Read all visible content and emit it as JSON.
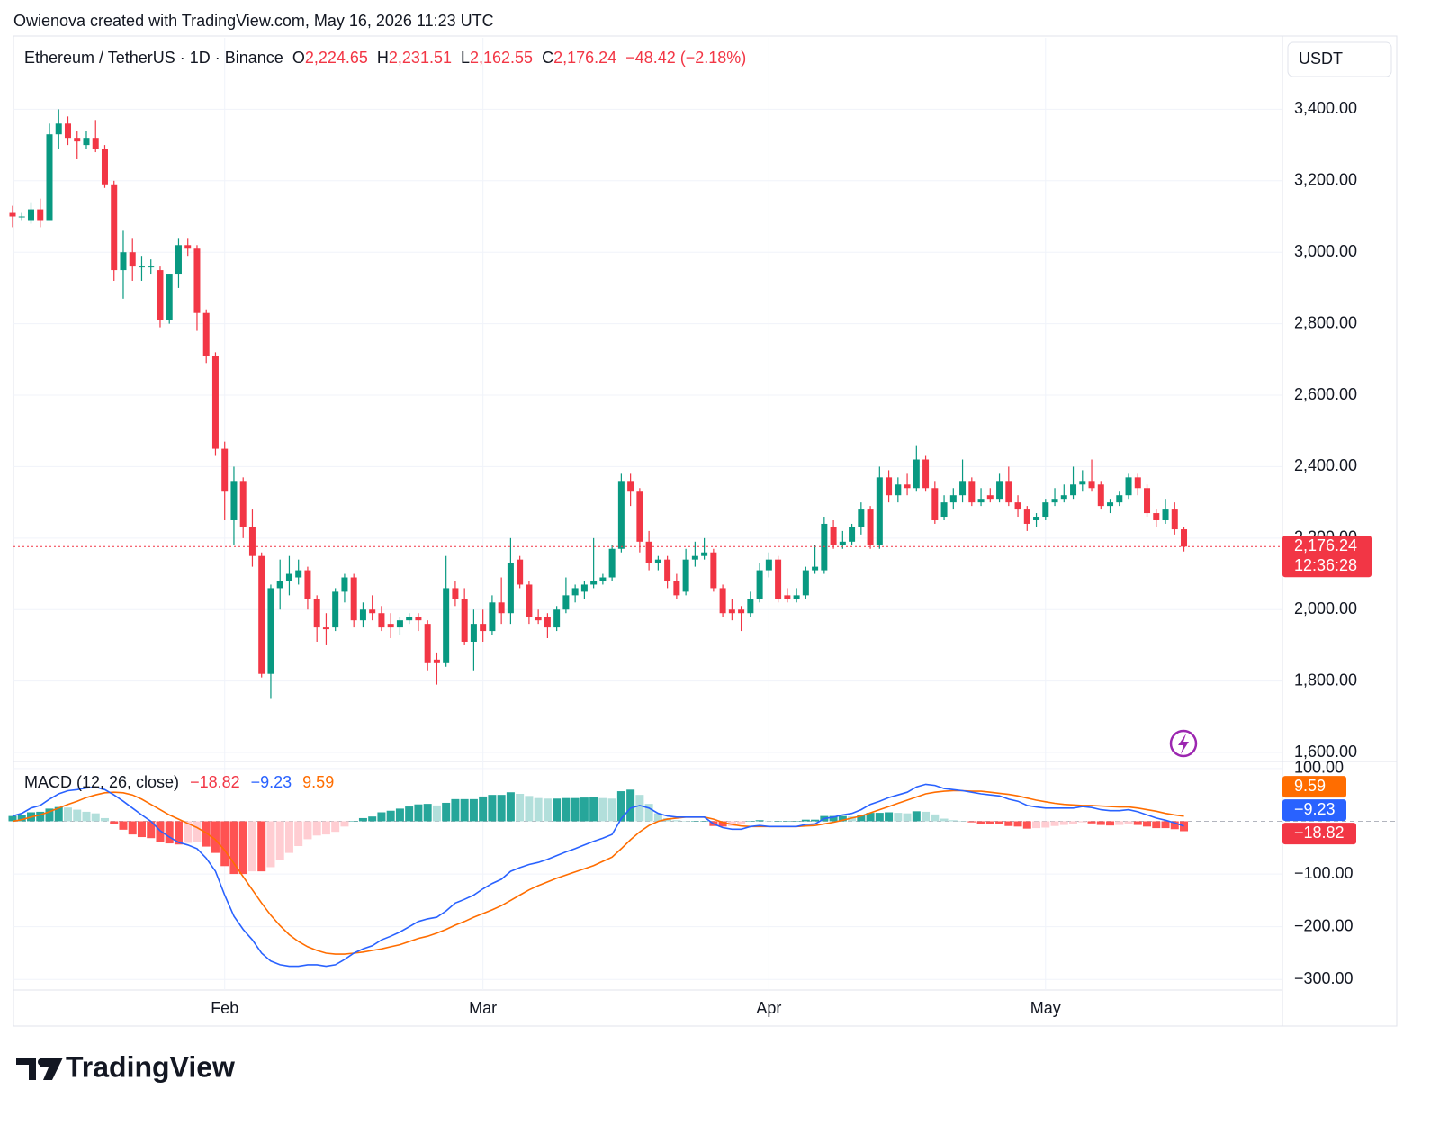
{
  "header": {
    "watermark": "Owienova created with TradingView.com, May 16, 2026 11:23 UTC"
  },
  "footer": {
    "brand": "TradingView"
  },
  "chart_data": [
    {
      "type": "candlestick",
      "title": "Ethereum / TetherUS · 1D · Binance",
      "currency": "USDT",
      "ohlc_letters": [
        "O",
        "H",
        "L",
        "C"
      ],
      "ohlc_labels": [
        "2,224.65",
        "2,231.51",
        "2,162.55",
        "2,176.24"
      ],
      "change_label": "−48.42 (−2.18%)",
      "last_label": "2,176.24",
      "countdown": "12:36:28",
      "up_color": "#089981",
      "down_color": "#f23645",
      "grid": true,
      "xlim": [
        0,
        137
      ],
      "ylim": [
        1580,
        3600
      ],
      "yticks": [
        {
          "value": 3400,
          "label": "3,400.00"
        },
        {
          "value": 3200,
          "label": "3,200.00"
        },
        {
          "value": 3000,
          "label": "3,000.00"
        },
        {
          "value": 2800,
          "label": "2,800.00"
        },
        {
          "value": 2600,
          "label": "2,600.00"
        },
        {
          "value": 2400,
          "label": "2,400.00"
        },
        {
          "value": 2200,
          "label": "2,200.00"
        },
        {
          "value": 2000,
          "label": "2,000.00"
        },
        {
          "value": 1800,
          "label": "1,800.00"
        },
        {
          "value": 1600,
          "label": "1,600.00"
        }
      ],
      "candles": [
        [
          3110,
          3130,
          3070,
          3100
        ],
        [
          3100,
          3110,
          3090,
          3100
        ],
        [
          3090,
          3140,
          3080,
          3120
        ],
        [
          3120,
          3150,
          3070,
          3090
        ],
        [
          3090,
          3360,
          3090,
          3330
        ],
        [
          3330,
          3400,
          3290,
          3360
        ],
        [
          3360,
          3380,
          3300,
          3320
        ],
        [
          3320,
          3340,
          3260,
          3310
        ],
        [
          3300,
          3340,
          3290,
          3320
        ],
        [
          3320,
          3370,
          3280,
          3290
        ],
        [
          3290,
          3300,
          3180,
          3190
        ],
        [
          3190,
          3200,
          2920,
          2950
        ],
        [
          2950,
          3060,
          2870,
          3000
        ],
        [
          3000,
          3040,
          2920,
          2960
        ],
        [
          2960,
          2990,
          2920,
          2960
        ],
        [
          2960,
          2980,
          2940,
          2960
        ],
        [
          2950,
          2960,
          2790,
          2810
        ],
        [
          2810,
          2940,
          2800,
          2940
        ],
        [
          2940,
          3040,
          2900,
          3020
        ],
        [
          3020,
          3040,
          2990,
          3010
        ],
        [
          3010,
          3020,
          2780,
          2830
        ],
        [
          2830,
          2840,
          2690,
          2710
        ],
        [
          2710,
          2720,
          2430,
          2450
        ],
        [
          2450,
          2470,
          2250,
          2330
        ],
        [
          2250,
          2400,
          2180,
          2360
        ],
        [
          2360,
          2370,
          2200,
          2230
        ],
        [
          2230,
          2280,
          2120,
          2150
        ],
        [
          2150,
          2160,
          1810,
          1820
        ],
        [
          1820,
          2070,
          1750,
          2060
        ],
        [
          2060,
          2140,
          2000,
          2080
        ],
        [
          2080,
          2150,
          2040,
          2100
        ],
        [
          2090,
          2140,
          2070,
          2110
        ],
        [
          2110,
          2120,
          2000,
          2030
        ],
        [
          2030,
          2040,
          1910,
          1950
        ],
        [
          1950,
          1990,
          1900,
          1945
        ],
        [
          1950,
          2060,
          1940,
          2050
        ],
        [
          2050,
          2100,
          2020,
          2090
        ],
        [
          2090,
          2100,
          1950,
          1970
        ],
        [
          1970,
          2020,
          1950,
          2000
        ],
        [
          2000,
          2040,
          1970,
          1990
        ],
        [
          1990,
          2010,
          1940,
          1950
        ],
        [
          1960,
          1990,
          1920,
          1950
        ],
        [
          1950,
          1980,
          1930,
          1970
        ],
        [
          1970,
          1990,
          1960,
          1980
        ],
        [
          1980,
          1990,
          1940,
          1970
        ],
        [
          1960,
          1970,
          1830,
          1850
        ],
        [
          1860,
          1880,
          1790,
          1850
        ],
        [
          1850,
          2150,
          1840,
          2060
        ],
        [
          2060,
          2080,
          2010,
          2030
        ],
        [
          2030,
          2060,
          1900,
          1910
        ],
        [
          1910,
          2000,
          1830,
          1960
        ],
        [
          1960,
          2000,
          1910,
          1940
        ],
        [
          1940,
          2040,
          1930,
          2020
        ],
        [
          2020,
          2090,
          1960,
          1990
        ],
        [
          1990,
          2200,
          1960,
          2130
        ],
        [
          2140,
          2150,
          2060,
          2070
        ],
        [
          2070,
          2080,
          1960,
          1980
        ],
        [
          1980,
          2000,
          1960,
          1970
        ],
        [
          1980,
          1990,
          1920,
          1950
        ],
        [
          1950,
          2010,
          1940,
          2000
        ],
        [
          2000,
          2090,
          1990,
          2040
        ],
        [
          2040,
          2070,
          2020,
          2060
        ],
        [
          2050,
          2080,
          2030,
          2070
        ],
        [
          2070,
          2200,
          2060,
          2080
        ],
        [
          2080,
          2100,
          2070,
          2090
        ],
        [
          2090,
          2180,
          2080,
          2170
        ],
        [
          2170,
          2380,
          2160,
          2360
        ],
        [
          2360,
          2380,
          2290,
          2330
        ],
        [
          2330,
          2340,
          2160,
          2190
        ],
        [
          2190,
          2220,
          2110,
          2130
        ],
        [
          2130,
          2150,
          2110,
          2140
        ],
        [
          2140,
          2150,
          2060,
          2080
        ],
        [
          2080,
          2100,
          2030,
          2040
        ],
        [
          2050,
          2170,
          2040,
          2140
        ],
        [
          2140,
          2190,
          2120,
          2150
        ],
        [
          2150,
          2200,
          2140,
          2160
        ],
        [
          2160,
          2170,
          2050,
          2060
        ],
        [
          2060,
          2070,
          1980,
          1990
        ],
        [
          2000,
          2030,
          1970,
          1990
        ],
        [
          2000,
          2010,
          1940,
          1990
        ],
        [
          1990,
          2050,
          1980,
          2030
        ],
        [
          2030,
          2130,
          2020,
          2110
        ],
        [
          2110,
          2160,
          2090,
          2140
        ],
        [
          2140,
          2150,
          2020,
          2030
        ],
        [
          2040,
          2060,
          2020,
          2030
        ],
        [
          2030,
          2060,
          2020,
          2040
        ],
        [
          2040,
          2120,
          2030,
          2110
        ],
        [
          2110,
          2180,
          2100,
          2120
        ],
        [
          2110,
          2260,
          2100,
          2240
        ],
        [
          2230,
          2250,
          2170,
          2180
        ],
        [
          2180,
          2220,
          2170,
          2190
        ],
        [
          2190,
          2240,
          2180,
          2230
        ],
        [
          2230,
          2300,
          2210,
          2280
        ],
        [
          2280,
          2290,
          2170,
          2180
        ],
        [
          2180,
          2400,
          2170,
          2370
        ],
        [
          2370,
          2390,
          2300,
          2320
        ],
        [
          2320,
          2370,
          2300,
          2350
        ],
        [
          2350,
          2380,
          2320,
          2340
        ],
        [
          2340,
          2460,
          2330,
          2420
        ],
        [
          2420,
          2430,
          2330,
          2340
        ],
        [
          2340,
          2360,
          2240,
          2250
        ],
        [
          2260,
          2320,
          2250,
          2300
        ],
        [
          2300,
          2340,
          2280,
          2320
        ],
        [
          2320,
          2420,
          2300,
          2360
        ],
        [
          2360,
          2370,
          2290,
          2300
        ],
        [
          2300,
          2340,
          2290,
          2310
        ],
        [
          2320,
          2340,
          2300,
          2310
        ],
        [
          2310,
          2380,
          2300,
          2360
        ],
        [
          2360,
          2400,
          2290,
          2300
        ],
        [
          2300,
          2320,
          2260,
          2280
        ],
        [
          2280,
          2290,
          2220,
          2240
        ],
        [
          2250,
          2270,
          2230,
          2260
        ],
        [
          2260,
          2310,
          2250,
          2300
        ],
        [
          2300,
          2340,
          2290,
          2310
        ],
        [
          2310,
          2350,
          2300,
          2320
        ],
        [
          2320,
          2400,
          2310,
          2350
        ],
        [
          2350,
          2390,
          2330,
          2360
        ],
        [
          2360,
          2420,
          2330,
          2340
        ],
        [
          2350,
          2360,
          2280,
          2290
        ],
        [
          2290,
          2310,
          2270,
          2300
        ],
        [
          2300,
          2330,
          2290,
          2320
        ],
        [
          2320,
          2380,
          2310,
          2370
        ],
        [
          2370,
          2380,
          2320,
          2340
        ],
        [
          2340,
          2350,
          2260,
          2270
        ],
        [
          2270,
          2280,
          2230,
          2250
        ],
        [
          2250,
          2310,
          2240,
          2280
        ],
        [
          2280,
          2300,
          2210,
          2224.65
        ],
        [
          2224.65,
          2231.51,
          2162.55,
          2176.24
        ]
      ]
    },
    {
      "type": "macd",
      "title": "MACD (12, 26, close)",
      "grid": true,
      "xlim": [
        0,
        137
      ],
      "ylim": [
        -320,
        110
      ],
      "xticks": [
        {
          "value": 23,
          "label": "Feb"
        },
        {
          "value": 51,
          "label": "Mar"
        },
        {
          "value": 82,
          "label": "Apr"
        },
        {
          "value": 112,
          "label": "May"
        }
      ],
      "yticks": [
        {
          "value": 100,
          "label": "100.00"
        },
        {
          "value": -100,
          "label": "−100.00"
        },
        {
          "value": -200,
          "label": "−200.00"
        },
        {
          "value": -300,
          "label": "−300.00"
        }
      ],
      "histogram": {
        "colors": [
          "#26a69a",
          "#b2dfdb",
          "#ff5252",
          "#ffcdd2"
        ],
        "last_label": "−18.82",
        "label_color": "#f23645",
        "values": [
          10,
          12,
          17,
          18,
          24,
          27,
          26,
          22,
          18,
          15,
          6,
          -5,
          -16,
          -25,
          -30,
          -32,
          -40,
          -42,
          -44,
          -41,
          -40,
          -48,
          -60,
          -85,
          -100,
          -100,
          -95,
          -95,
          -87,
          -74,
          -60,
          -47,
          -34,
          -27,
          -25,
          -20,
          -10,
          0,
          6,
          9,
          17,
          20,
          24,
          28,
          32,
          33,
          30,
          35,
          42,
          42,
          42,
          47,
          50,
          50,
          55,
          52,
          48,
          44,
          43,
          43,
          44,
          44,
          45,
          46,
          44,
          43,
          57,
          60,
          50,
          33,
          15,
          6,
          2,
          0,
          0,
          0,
          -9,
          -10,
          -9,
          -6,
          0,
          2,
          0,
          0,
          0,
          0,
          3,
          3,
          10,
          10,
          10,
          9,
          12,
          16,
          16,
          17,
          16,
          15,
          19,
          18,
          13,
          5,
          2,
          0,
          -2,
          -5,
          -5,
          -5,
          -9,
          -10,
          -14,
          -13,
          -12,
          -9,
          -7,
          -6,
          -2,
          -4,
          -7,
          -8,
          -7,
          -5,
          -7,
          -10,
          -13,
          -13,
          -15,
          -18.82
        ]
      },
      "macd": {
        "color": "#2962ff",
        "last_label": "−9.23",
        "values": [
          10,
          15,
          25,
          30,
          42,
          52,
          58,
          60,
          63,
          65,
          60,
          50,
          38,
          25,
          12,
          0,
          -18,
          -30,
          -40,
          -45,
          -52,
          -70,
          -95,
          -140,
          -180,
          -205,
          -225,
          -250,
          -265,
          -272,
          -275,
          -275,
          -272,
          -272,
          -275,
          -272,
          -262,
          -250,
          -242,
          -236,
          -225,
          -218,
          -210,
          -200,
          -190,
          -185,
          -182,
          -170,
          -155,
          -148,
          -140,
          -128,
          -118,
          -110,
          -95,
          -88,
          -82,
          -78,
          -72,
          -65,
          -58,
          -52,
          -45,
          -38,
          -32,
          -25,
          5,
          25,
          30,
          25,
          15,
          10,
          8,
          8,
          8,
          8,
          -5,
          -12,
          -15,
          -15,
          -10,
          -8,
          -10,
          -10,
          -10,
          -10,
          -6,
          -5,
          5,
          8,
          12,
          15,
          22,
          32,
          38,
          45,
          50,
          55,
          65,
          70,
          68,
          62,
          60,
          58,
          55,
          52,
          50,
          48,
          42,
          38,
          30,
          27,
          25,
          25,
          25,
          25,
          28,
          26,
          22,
          20,
          20,
          22,
          18,
          12,
          6,
          2,
          -3,
          -9.23
        ]
      },
      "signal": {
        "color": "#ff6d00",
        "last_label": "9.59",
        "values": [
          0,
          3,
          8,
          12,
          18,
          25,
          32,
          38,
          45,
          50,
          54,
          55,
          54,
          50,
          42,
          32,
          22,
          12,
          4,
          -4,
          -12,
          -22,
          -35,
          -55,
          -80,
          -105,
          -130,
          -155,
          -178,
          -198,
          -215,
          -228,
          -238,
          -245,
          -250,
          -252,
          -252,
          -250,
          -248,
          -245,
          -242,
          -238,
          -234,
          -228,
          -222,
          -218,
          -212,
          -205,
          -197,
          -190,
          -182,
          -175,
          -168,
          -160,
          -150,
          -140,
          -130,
          -122,
          -115,
          -108,
          -102,
          -96,
          -90,
          -84,
          -76,
          -68,
          -52,
          -35,
          -20,
          -8,
          0,
          4,
          6,
          8,
          8,
          8,
          4,
          -2,
          -6,
          -9,
          -10,
          -10,
          -10,
          -10,
          -10,
          -10,
          -9,
          -8,
          -5,
          -2,
          2,
          6,
          10,
          16,
          22,
          28,
          34,
          40,
          46,
          52,
          55,
          57,
          58,
          58,
          57,
          57,
          55,
          53,
          51,
          48,
          44,
          40,
          37,
          34,
          32,
          31,
          30,
          30,
          29,
          28,
          27,
          27,
          25,
          22,
          19,
          15,
          12,
          9.59
        ]
      }
    }
  ]
}
